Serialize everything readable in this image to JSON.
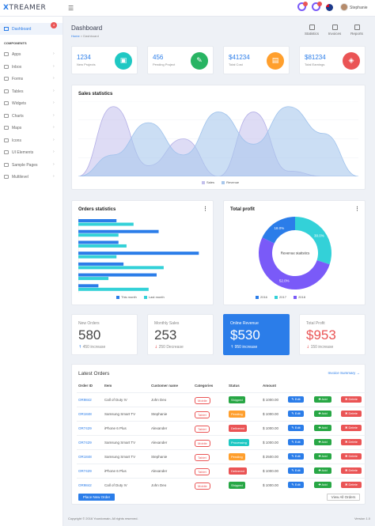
{
  "header": {
    "brand_x": "X",
    "brand_rest": "TREAMER",
    "menu_icon": "☰",
    "user_name": "Stephanie"
  },
  "sidebar": {
    "dashboard_label": "Dashboard",
    "badge": "4",
    "section_label": "COMPONENTS",
    "items": [
      {
        "label": "Apps"
      },
      {
        "label": "Inbox"
      },
      {
        "label": "Forms"
      },
      {
        "label": "Tables"
      },
      {
        "label": "Widgets"
      },
      {
        "label": "Charts"
      },
      {
        "label": "Maps"
      },
      {
        "label": "Icons"
      },
      {
        "label": "UI Elements"
      },
      {
        "label": "Sample Pages"
      },
      {
        "label": "Multilevel"
      }
    ],
    "chevron": "›"
  },
  "page": {
    "title": "Dashboard",
    "breadcrumb_home": "Home",
    "breadcrumb_sep": " > ",
    "breadcrumb_current": "Dashboard",
    "quick_links": [
      "Statistics",
      "Invoices",
      "Reports"
    ]
  },
  "stats": [
    {
      "value": "1234",
      "label": "New Projects",
      "color": "#1fc8c3",
      "icon": "briefcase-icon",
      "glyph": "▣"
    },
    {
      "value": "456",
      "label": "Pending Project",
      "color": "#28b463",
      "icon": "pencil-icon",
      "glyph": "✎"
    },
    {
      "value": "$41234",
      "label": "Total Cost",
      "color": "#ff9f2d",
      "icon": "folder-icon",
      "glyph": "▤"
    },
    {
      "value": "$81234",
      "label": "Total Earnings",
      "color": "#ea5455",
      "icon": "layers-icon",
      "glyph": "◈"
    }
  ],
  "sales": {
    "title": "Sales statistics",
    "legend": [
      "Sales",
      "Revenue"
    ],
    "colors": [
      "#c3c0ec",
      "#a9c8ec"
    ]
  },
  "orders_stats": {
    "title": "Orders statistics",
    "legend": [
      "This month",
      "Last month"
    ],
    "colors": [
      "#2b7de9",
      "#33d1d8"
    ]
  },
  "total_profit": {
    "title": "Total profit",
    "center_label": "Revenue statistics",
    "legend": [
      "2016",
      "2017",
      "2018"
    ],
    "colors": [
      "#2b7de9",
      "#33d1d8",
      "#7a5af8"
    ]
  },
  "kpis": [
    {
      "label": "New Orders",
      "value": "580",
      "change": "450 increase",
      "arrow": "↑",
      "change_color": "#2b7de9"
    },
    {
      "label": "Monthly Sales",
      "value": "253",
      "change": "250 Decrease",
      "arrow": "↓",
      "change_color": "#ea5455"
    },
    {
      "label": "Online Revenue",
      "value": "$530",
      "change": "950 increase",
      "arrow": "↑",
      "change_color": "#ffffff"
    },
    {
      "label": "Total Profit",
      "value": "$953",
      "change": "150 increase",
      "arrow": "↓",
      "change_color": "#ea5455"
    }
  ],
  "orders": {
    "title": "Latest Orders",
    "summary_link": "Invoice Summary →",
    "columns": [
      "Order ID",
      "Item",
      "Customer name",
      "Categories",
      "Status",
      "Amount"
    ],
    "rows": [
      {
        "id": "OR9842",
        "item": "Call of Duty IV",
        "customer": "John Deo",
        "category": "Mobile",
        "status": "Shipped",
        "status_color": "#28a745",
        "amount": "$ 1000.00"
      },
      {
        "id": "OR1848",
        "item": "Samsung Smart TV",
        "customer": "Stephanie",
        "category": "Tablet",
        "status": "Pending",
        "status_color": "#ff9f2d",
        "amount": "$ 1000.00"
      },
      {
        "id": "OR7429",
        "item": "iPhone 6 Plus",
        "customer": "Alexander",
        "category": "Tablet",
        "status": "Delivered",
        "status_color": "#ea5455",
        "amount": "$ 1000.00"
      },
      {
        "id": "OR7429",
        "item": "Samsung Smart TV",
        "customer": "Alexander",
        "category": "Mobile",
        "status": "Processing",
        "status_color": "#1fc8c3",
        "amount": "$ 1000.00"
      },
      {
        "id": "OR1848",
        "item": "Samsung Smart TV",
        "customer": "Stephanie",
        "category": "Tablet",
        "status": "Pending",
        "status_color": "#ff9f2d",
        "amount": "$ 2500.00"
      },
      {
        "id": "OR7429",
        "item": "iPhone 6 Plus",
        "customer": "Alexander",
        "category": "Tablet",
        "status": "Delivered",
        "status_color": "#ea5455",
        "amount": "$ 1000.00"
      },
      {
        "id": "OR9842",
        "item": "Call of Duty IV",
        "customer": "John Deo",
        "category": "Mobile",
        "status": "Shipped",
        "status_color": "#28a745",
        "amount": "$ 1000.00"
      }
    ],
    "edit_label": "✎ Edit",
    "add_label": "✚ Add",
    "delete_label": "✖ Delete",
    "place_order": "Place New Order",
    "view_all": "View All Orders"
  },
  "footer": {
    "copyright": "Copyright © 2016 Yourdomain. All rights reserved.",
    "version": "Version 1.0"
  },
  "chart_data": [
    {
      "type": "area",
      "title": "Sales statistics",
      "x": [
        0,
        1,
        2,
        3,
        4,
        5,
        6,
        7,
        8
      ],
      "series": [
        {
          "name": "Sales",
          "values": [
            0,
            130,
            20,
            70,
            0,
            120,
            10,
            0,
            0
          ]
        },
        {
          "name": "Revenue",
          "values": [
            0,
            40,
            100,
            40,
            120,
            60,
            130,
            80,
            0
          ]
        }
      ],
      "ylim": [
        0,
        140
      ]
    },
    {
      "type": "bar",
      "title": "Orders statistics",
      "orientation": "horizontal",
      "categories": [
        "1",
        "2",
        "3",
        "4",
        "5",
        "6",
        "7"
      ],
      "series": [
        {
          "name": "This month",
          "values": [
            38,
            80,
            40,
            120,
            45,
            78,
            20
          ]
        },
        {
          "name": "Last month",
          "values": [
            55,
            40,
            48,
            38,
            85,
            30,
            70
          ]
        }
      ],
      "xlim": [
        0,
        130
      ]
    },
    {
      "type": "pie",
      "title": "Total profit",
      "categories": [
        "2016",
        "2017",
        "2018"
      ],
      "values": [
        18.0,
        30.0,
        52.0
      ],
      "labels": [
        "18.0%",
        "30.0%",
        "52.0%"
      ]
    }
  ]
}
